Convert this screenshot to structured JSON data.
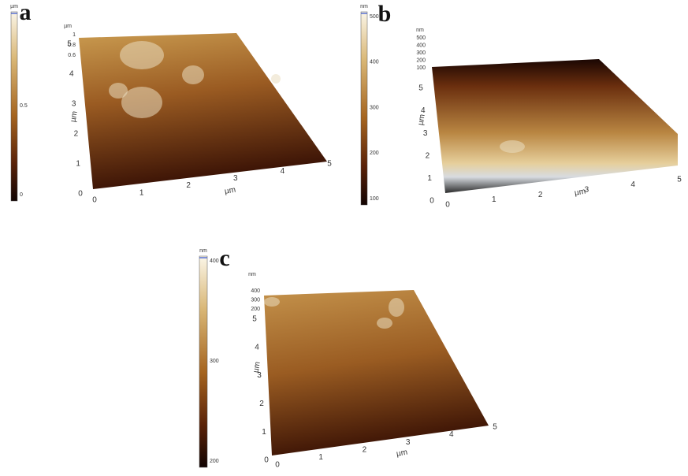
{
  "panels": [
    {
      "label": "a",
      "colorbar": {
        "unit": "µm",
        "ticks": [
          "1",
          "0.5",
          "0"
        ]
      },
      "z": {
        "unit": "µm",
        "ticks": [
          "1",
          "0.8",
          "0.6"
        ]
      },
      "y": {
        "unit": "µm",
        "ticks": [
          "0",
          "1",
          "2",
          "3",
          "4",
          "5"
        ]
      },
      "x": {
        "unit": "µm",
        "ticks": [
          "0",
          "1",
          "2",
          "3",
          "4",
          "5"
        ]
      }
    },
    {
      "label": "b",
      "colorbar": {
        "unit": "nm",
        "ticks": [
          "500",
          "400",
          "300",
          "200",
          "100"
        ]
      },
      "z": {
        "unit": "nm",
        "ticks": [
          "500",
          "400",
          "300",
          "200",
          "100"
        ]
      },
      "y": {
        "unit": "µm",
        "ticks": [
          "0",
          "1",
          "2",
          "3",
          "4",
          "5"
        ]
      },
      "x": {
        "unit": "µm",
        "ticks": [
          "0",
          "1",
          "2",
          "3",
          "4",
          "5"
        ]
      }
    },
    {
      "label": "c",
      "colorbar": {
        "unit": "nm",
        "ticks": [
          "400",
          "300",
          "200"
        ]
      },
      "z": {
        "unit": "nm",
        "ticks": [
          "400",
          "300",
          "200"
        ]
      },
      "y": {
        "unit": "µm",
        "ticks": [
          "0",
          "1",
          "2",
          "3",
          "4",
          "5"
        ]
      },
      "x": {
        "unit": "µm",
        "ticks": [
          "0",
          "1",
          "2",
          "3",
          "4",
          "5"
        ]
      }
    }
  ]
}
